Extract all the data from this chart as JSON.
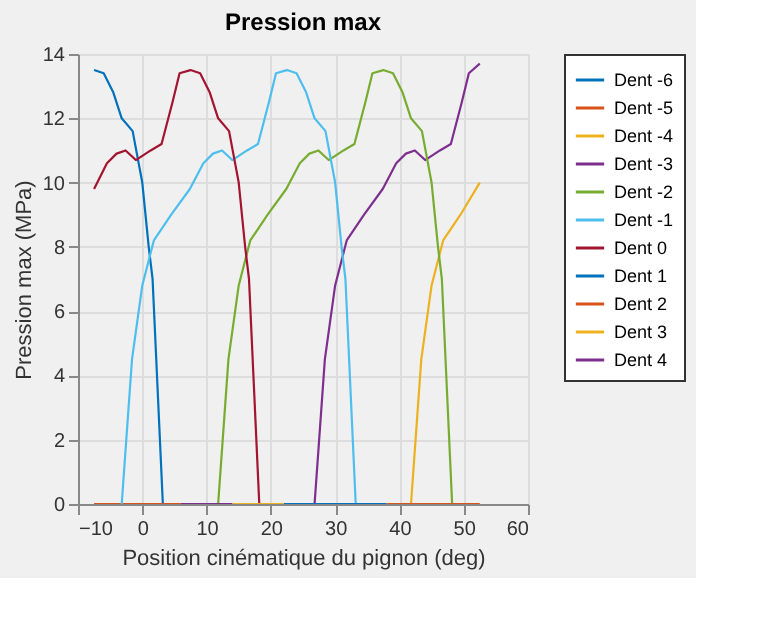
{
  "chart_data": {
    "type": "line",
    "title": "Pression max",
    "xlabel": "Position cinématique du pignon (deg)",
    "ylabel": "Pression max (MPa)",
    "xlim": [
      -10,
      60
    ],
    "xticks": [
      -10,
      0,
      10,
      20,
      30,
      40,
      50,
      60
    ],
    "ylim": [
      0,
      14
    ],
    "yticks": [
      0,
      2,
      4,
      6,
      8,
      10,
      12,
      14
    ],
    "grid": true,
    "legend": "right",
    "series": [
      {
        "name": "Dent -6",
        "color": "#0072bd",
        "x": [
          -7.5,
          -6,
          -4.5,
          -3.2,
          -1.5,
          0,
          1,
          1.6,
          3.2
        ],
        "values": [
          13.5,
          13.4,
          12.8,
          12,
          11.6,
          10,
          8,
          7,
          0
        ]
      },
      {
        "name": "Dent -5",
        "color": "#d95319",
        "x": [
          -7.5,
          6
        ],
        "values": [
          0,
          0
        ]
      },
      {
        "name": "Dent -4",
        "color": "#edb120",
        "x": [
          41.8,
          43.4,
          45,
          46.8,
          49.5,
          52.5
        ],
        "values": [
          0,
          4.5,
          6.8,
          8.2,
          9,
          10
        ]
      },
      {
        "name": "Dent -3",
        "color": "#7e2f8e",
        "x": [
          26.8,
          28.4,
          30,
          31.8,
          34.5,
          37.4,
          39.5,
          41,
          42.4,
          44,
          46.3,
          48,
          49.7,
          50.8,
          52.5
        ],
        "values": [
          0,
          4.5,
          6.8,
          8.2,
          9,
          9.8,
          10.6,
          10.9,
          11,
          10.7,
          11,
          11.2,
          12.5,
          13.4,
          13.7
        ]
      },
      {
        "name": "Dent -2",
        "color": "#77ac30",
        "x": [
          11.8,
          13.4,
          15,
          16.8,
          19.5,
          22.4,
          24.5,
          26,
          27.4,
          29,
          31.3,
          33,
          34.7,
          35.8,
          37.5,
          39,
          40.5,
          41.8,
          43.5,
          45,
          46,
          46.6,
          48.2
        ],
        "values": [
          0,
          4.5,
          6.8,
          8.2,
          9,
          9.8,
          10.6,
          10.9,
          11,
          10.7,
          11,
          11.2,
          12.5,
          13.4,
          13.5,
          13.4,
          12.8,
          12,
          11.6,
          10,
          8,
          7,
          0
        ]
      },
      {
        "name": "Dent -1",
        "color": "#4dbeee",
        "x": [
          -3.2,
          -1.6,
          0,
          1.8,
          4.5,
          7.4,
          9.5,
          11,
          12.4,
          14,
          16.3,
          18,
          19.7,
          20.8,
          22.5,
          24,
          25.5,
          26.8,
          28.5,
          30,
          31,
          31.6,
          33.2
        ],
        "values": [
          0,
          4.5,
          6.8,
          8.2,
          9,
          9.8,
          10.6,
          10.9,
          11,
          10.7,
          11,
          11.2,
          12.5,
          13.4,
          13.5,
          13.4,
          12.8,
          12,
          11.6,
          10,
          8,
          7,
          0
        ]
      },
      {
        "name": "Dent 0",
        "color": "#a2142f",
        "x": [
          -7.5,
          -5.5,
          -4,
          -2.6,
          -1,
          1.3,
          3,
          4.7,
          5.8,
          7.5,
          9,
          10.5,
          11.8,
          13.5,
          15,
          16,
          16.6,
          18.2
        ],
        "values": [
          9.8,
          10.6,
          10.9,
          11,
          10.7,
          11,
          11.2,
          12.5,
          13.4,
          13.5,
          13.4,
          12.8,
          12,
          11.6,
          10,
          8,
          7,
          0
        ]
      },
      {
        "name": "Dent 1",
        "color": "#0072bd",
        "x": [
          22,
          38
        ],
        "values": [
          0,
          0
        ]
      },
      {
        "name": "Dent 2",
        "color": "#d95319",
        "x": [
          38,
          52.5
        ],
        "values": [
          0,
          0
        ]
      },
      {
        "name": "Dent 3",
        "color": "#edb120",
        "x": [
          14,
          22
        ],
        "values": [
          0,
          0
        ]
      },
      {
        "name": "Dent 4",
        "color": "#7e2f8e",
        "x": [
          6,
          14
        ],
        "values": [
          0,
          0
        ]
      }
    ]
  }
}
